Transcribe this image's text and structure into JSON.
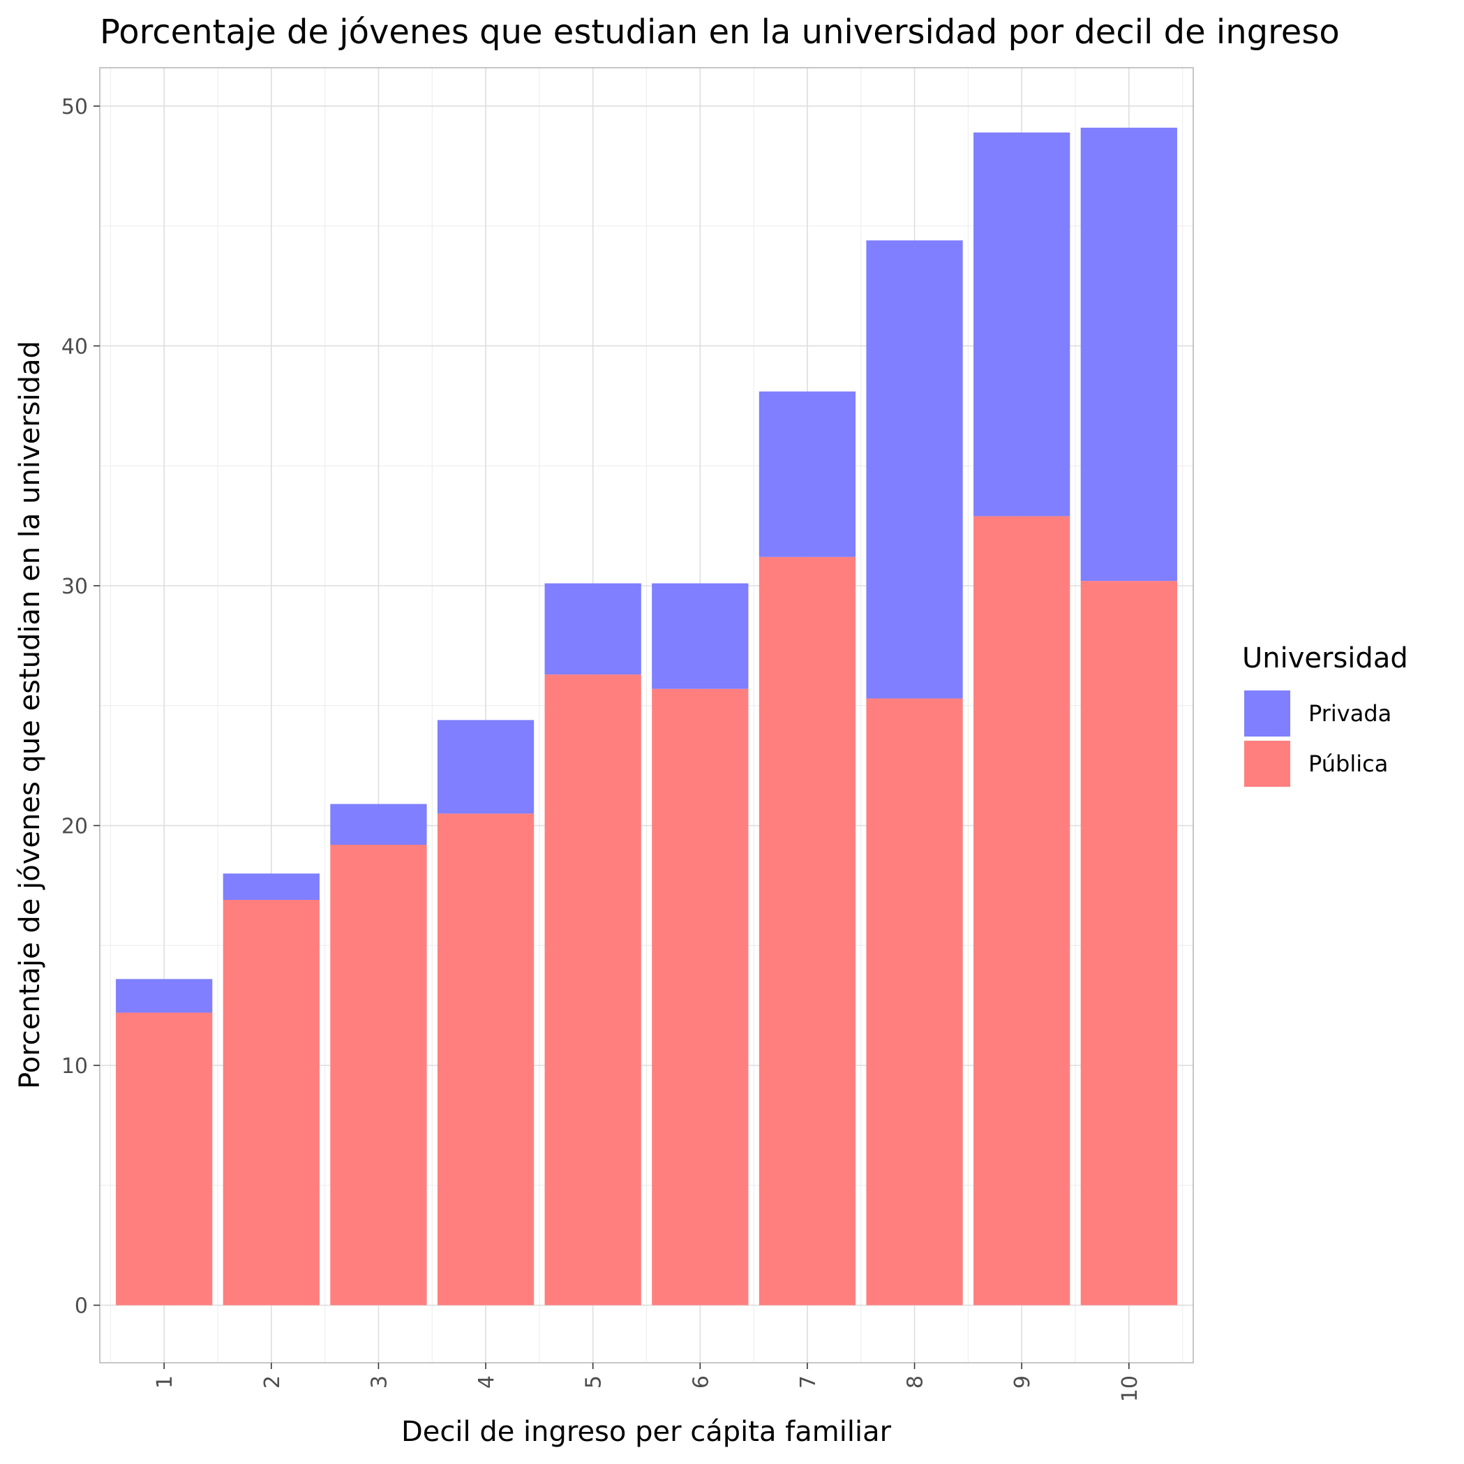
{
  "chart_data": {
    "type": "bar",
    "stacked": true,
    "title": "Porcentaje de jóvenes que estudian en la universidad por decil de ingreso",
    "xlabel": "Decil de ingreso per cápita familiar",
    "ylabel": "Porcentaje de jóvenes que estudian en la universidad",
    "categories": [
      "1",
      "2",
      "3",
      "4",
      "5",
      "6",
      "7",
      "8",
      "9",
      "10"
    ],
    "series": [
      {
        "name": "Pública",
        "color": "#ff7f7f",
        "values": [
          12.2,
          16.9,
          19.2,
          20.5,
          26.3,
          25.7,
          31.2,
          25.3,
          32.9,
          30.2
        ]
      },
      {
        "name": "Privada",
        "color": "#7f7fff",
        "values": [
          1.4,
          1.1,
          1.7,
          3.9,
          3.8,
          4.4,
          6.9,
          19.1,
          16.0,
          18.9
        ]
      }
    ],
    "yticks": [
      0,
      10,
      20,
      30,
      40,
      50
    ],
    "ylim": [
      -2.4,
      51.6
    ],
    "grid": true,
    "legend": {
      "title": "Universidad",
      "position": "right",
      "entries": [
        {
          "label": "Privada",
          "color": "#7f7fff"
        },
        {
          "label": "Pública",
          "color": "#ff7f7f"
        }
      ]
    }
  }
}
